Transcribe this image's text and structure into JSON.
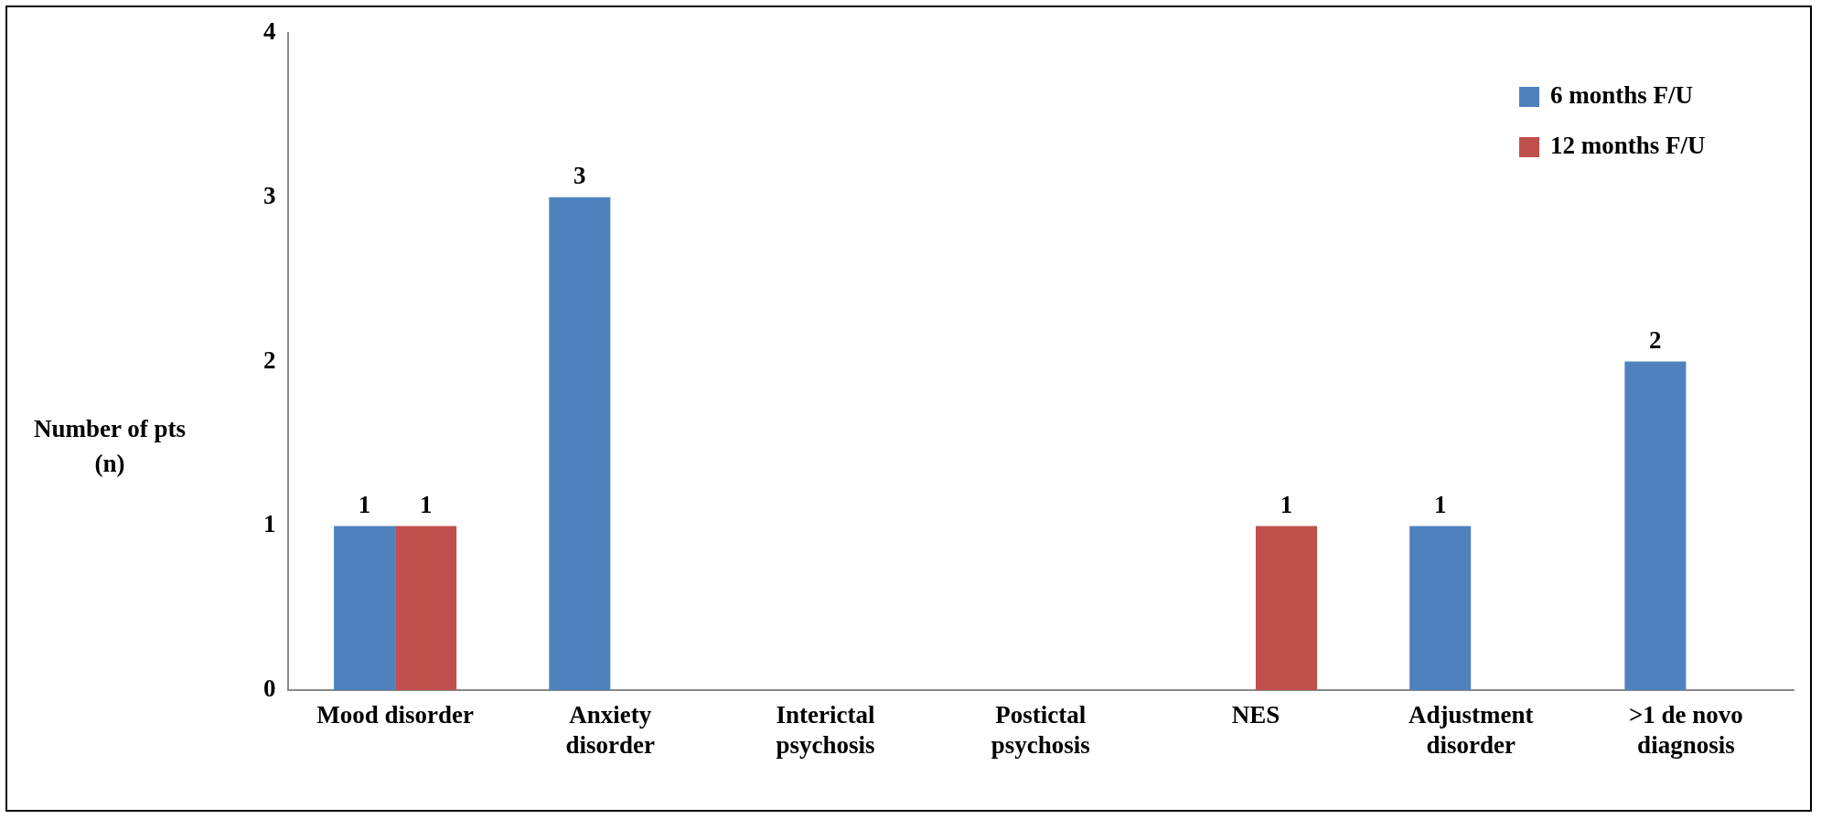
{
  "chart_data": {
    "type": "bar",
    "ylabel": "Number of pts (n)",
    "categories": [
      "Mood disorder",
      "Anxiety disorder",
      "Interictal psychosis",
      "Postictal psychosis",
      "NES",
      "Adjustment disorder",
      ">1 de novo diagnosis"
    ],
    "series": [
      {
        "name": "6 months F/U",
        "color": "#4f81bd",
        "values": [
          1,
          3,
          0,
          0,
          0,
          1,
          2
        ],
        "value_labels": [
          "1",
          "3",
          null,
          null,
          null,
          "1",
          "2"
        ]
      },
      {
        "name": "12 months F/U",
        "color": "#c0504d",
        "values": [
          1,
          0,
          0,
          0,
          1,
          0,
          0
        ],
        "value_labels": [
          "1",
          null,
          null,
          null,
          "1",
          null,
          null
        ]
      }
    ],
    "ylim": [
      0,
      4
    ],
    "yticks": [
      0,
      1,
      2,
      3,
      4
    ],
    "grid": false,
    "legend": "top right"
  }
}
